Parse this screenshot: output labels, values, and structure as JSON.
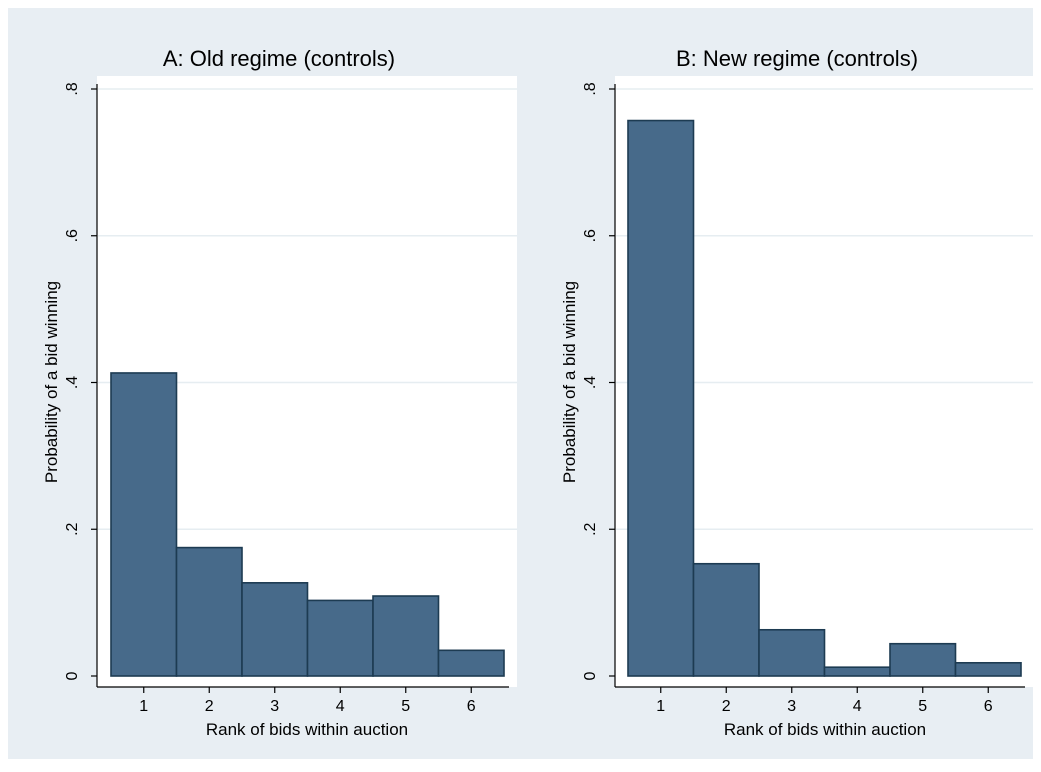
{
  "colors": {
    "outer_background": "#e8eef3",
    "plot_background": "#ffffff",
    "bar_fill": "#476a8a",
    "bar_stroke": "#1d3b52",
    "gridline": "#e6edf1",
    "axis": "#000000"
  },
  "chart_data": [
    {
      "type": "bar",
      "title": "A: Old regime (controls)",
      "xlabel": "Rank of bids within auction",
      "ylabel": "Probability of a bid winning",
      "categories": [
        "1",
        "2",
        "3",
        "4",
        "5",
        "6"
      ],
      "values": [
        0.413,
        0.175,
        0.127,
        0.103,
        0.109,
        0.035
      ],
      "ylim": [
        0,
        0.8
      ],
      "yticks": [
        0,
        0.2,
        0.4,
        0.6,
        0.8
      ],
      "ytick_labels": [
        "0",
        ".2",
        ".4",
        ".6",
        ".8"
      ],
      "grid": true
    },
    {
      "type": "bar",
      "title": "B: New regime (controls)",
      "xlabel": "Rank of bids within auction",
      "ylabel": "Probability of a bid winning",
      "categories": [
        "1",
        "2",
        "3",
        "4",
        "5",
        "6"
      ],
      "values": [
        0.757,
        0.153,
        0.063,
        0.012,
        0.044,
        0.018
      ],
      "ylim": [
        0,
        0.8
      ],
      "yticks": [
        0,
        0.2,
        0.4,
        0.6,
        0.8
      ],
      "ytick_labels": [
        "0",
        ".2",
        ".4",
        ".6",
        ".8"
      ],
      "grid": true
    }
  ]
}
